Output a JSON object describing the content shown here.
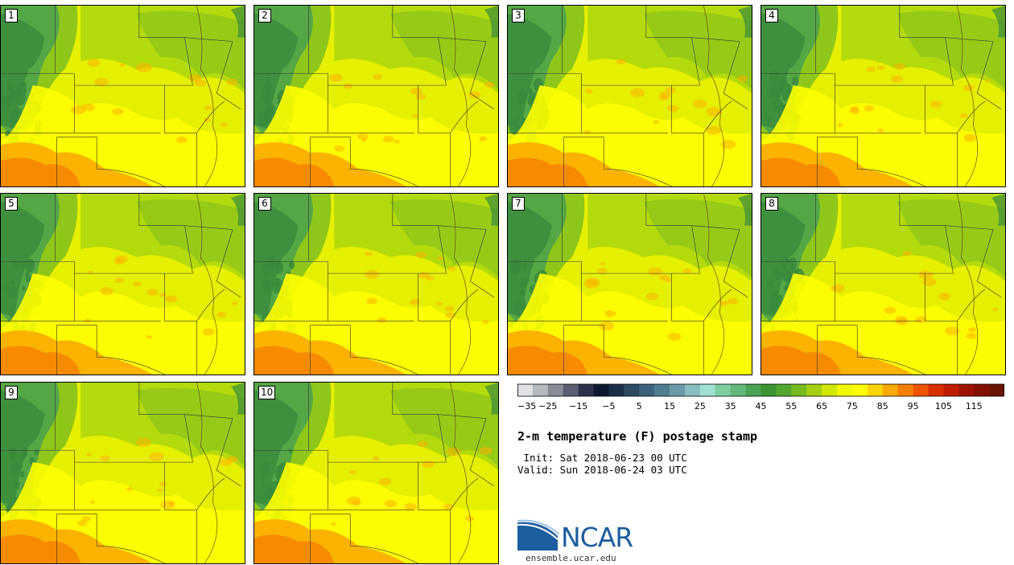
{
  "title": "2-m temperature (F) postage stamp",
  "init": " Init: Sat 2018-06-23 00 UTC",
  "valid": "Valid: Sun 2018-06-24 03 UTC",
  "url": "ensemble.ucar.edu",
  "logo_text": "NCAR",
  "members": [
    "1",
    "2",
    "3",
    "4",
    "5",
    "6",
    "7",
    "8",
    "9",
    "10"
  ],
  "colorbar": {
    "tick_labels": [
      "−35",
      "−25",
      "−15",
      "−5",
      "5",
      "15",
      "25",
      "35",
      "45",
      "55",
      "65",
      "75",
      "85",
      "95",
      "105",
      "115"
    ],
    "colors": [
      "#dfe1e4",
      "#b4b8bf",
      "#878c97",
      "#5a6072",
      "#2b3249",
      "#0c1730",
      "#1b2e49",
      "#2d4a63",
      "#3b627a",
      "#4f7e92",
      "#6b9aa8",
      "#89bcbf",
      "#9fe0d4",
      "#7ccd9e",
      "#63b97a",
      "#4aa254",
      "#3b9432",
      "#52a72e",
      "#76bb1f",
      "#a3cf10",
      "#d2e600",
      "#f2f800",
      "#fefe00",
      "#fcd500",
      "#faa900",
      "#f77e00",
      "#ee5400",
      "#d92e00",
      "#be1c00",
      "#9c1400",
      "#811000",
      "#6a1300"
    ]
  },
  "colors": {
    "bg": "#e5ef00",
    "mountain_dark": "#3a8b3c",
    "mountain_light": "#55a645",
    "north_green": "#8ec61a",
    "mid_green": "#b3da0c",
    "yellow": "#fefe00",
    "orange": "#fbb200",
    "deep_orange": "#f48200"
  }
}
